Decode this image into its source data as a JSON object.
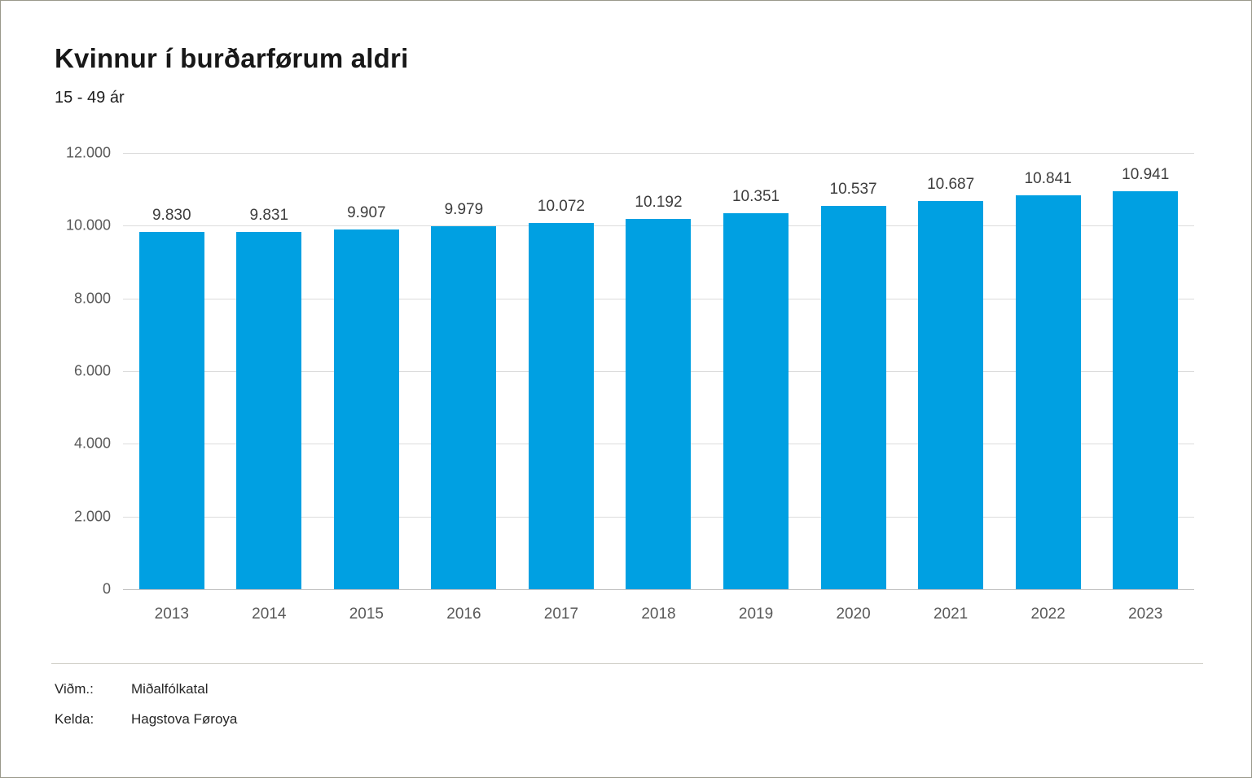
{
  "header": {
    "title": "Kvinnur í burðarførum aldri",
    "subtitle": "15 - 49 ár"
  },
  "chart_data": {
    "type": "bar",
    "title": "Kvinnur í burðarførum aldri",
    "subtitle": "15 - 49 ár",
    "categories": [
      "2013",
      "2014",
      "2015",
      "2016",
      "2017",
      "2018",
      "2019",
      "2020",
      "2021",
      "2022",
      "2023"
    ],
    "values": [
      9830,
      9831,
      9907,
      9979,
      10072,
      10192,
      10351,
      10537,
      10687,
      10841,
      10941
    ],
    "value_labels": [
      "9.830",
      "9.831",
      "9.907",
      "9.979",
      "10.072",
      "10.192",
      "10.351",
      "10.537",
      "10.687",
      "10.841",
      "10.941"
    ],
    "xlabel": "",
    "ylabel": "",
    "ylim": [
      0,
      12000
    ],
    "ytick_step": 2000,
    "ytick_labels": [
      "0",
      "2.000",
      "4.000",
      "6.000",
      "8.000",
      "10.000",
      "12.000"
    ],
    "grid": true,
    "legend_position": "none",
    "bar_color": "#00a0e2",
    "gridline_color": "#dcdcdc",
    "axis_line_color": "#c2c2c2",
    "label_color": "#3d3d3d",
    "tick_color": "#595959"
  },
  "footer": {
    "rows": [
      {
        "label": "Viðm.:",
        "value": "Miðalfólkatal"
      },
      {
        "label": "Kelda:",
        "value": "Hagstova Føroya"
      }
    ]
  }
}
